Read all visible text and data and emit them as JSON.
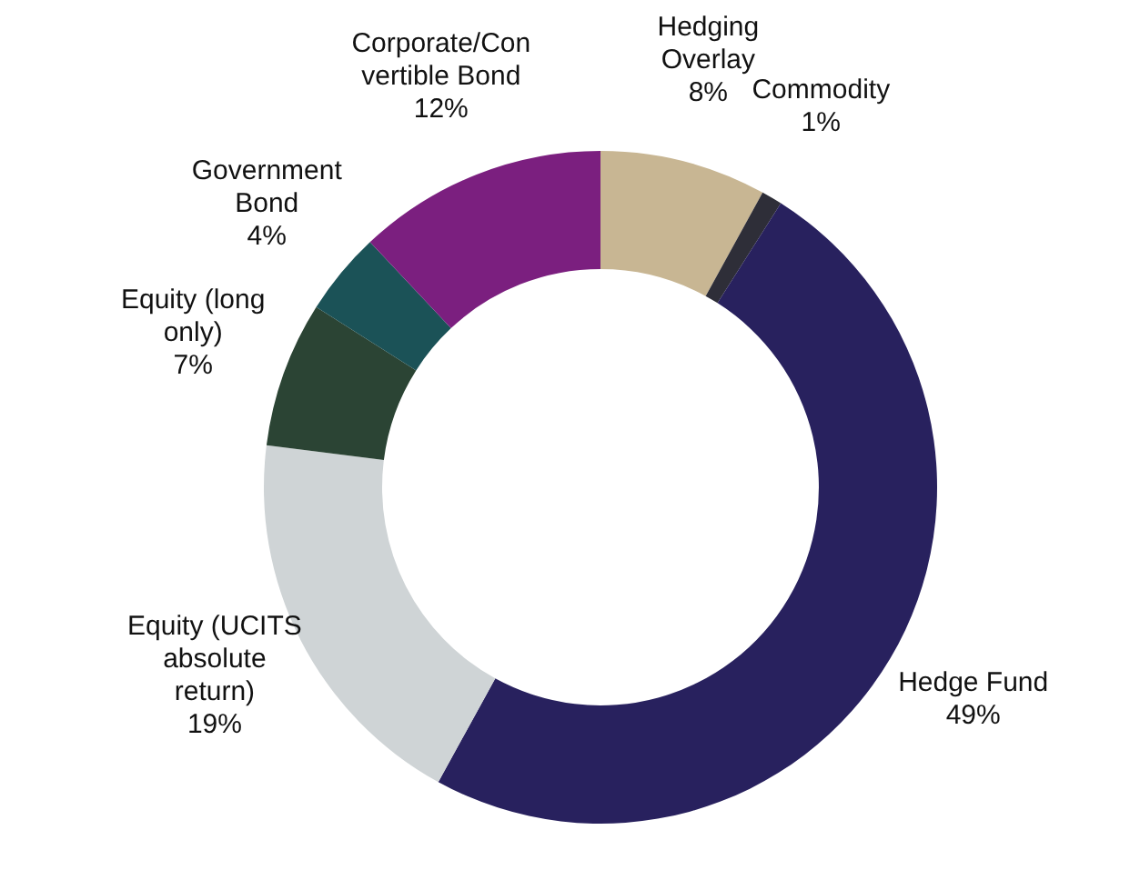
{
  "chart_data": {
    "type": "donut",
    "categories": [
      "Hedging Overlay",
      "Commodity",
      "Hedge Fund",
      "Equity (UCITS absolute return)",
      "Equity (long only)",
      "Government Bond",
      "Corporate/Convertible Bond"
    ],
    "values": [
      8,
      1,
      49,
      19,
      7,
      4,
      12
    ],
    "colors": [
      "#c8b693",
      "#2e2e38",
      "#28215e",
      "#cfd4d6",
      "#2b4434",
      "#1b5257",
      "#7b1f7f"
    ],
    "value_labels": [
      "8%",
      "1%",
      "49%",
      "19%",
      "7%",
      "4%",
      "12%"
    ],
    "legend": false
  }
}
